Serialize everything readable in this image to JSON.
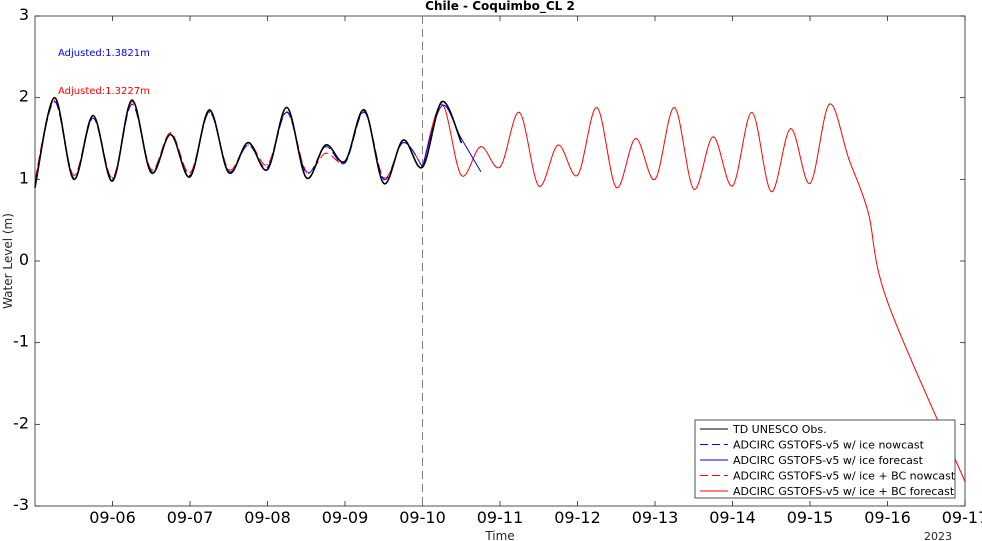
{
  "chart_data": {
    "type": "line",
    "title": "Chile - Coquimbo_CL 2",
    "xlabel": "Time",
    "ylabel": "Water Level (m)",
    "year_label": "2023",
    "xlim": [
      "09-05",
      "09-17"
    ],
    "ylim": [
      -3,
      3
    ],
    "x_ticks": [
      "09-06",
      "09-07",
      "09-08",
      "09-09",
      "09-10",
      "09-11",
      "09-12",
      "09-13",
      "09-14",
      "09-15",
      "09-16",
      "09-17"
    ],
    "y_ticks": [
      3,
      2,
      1,
      0,
      -1,
      -2,
      -3
    ],
    "nowcast_end": "09-10",
    "annotations": [
      {
        "text": "Adjusted:1.3821m",
        "color": "#0000ff"
      },
      {
        "text": "Adjusted:1.3227m",
        "color": "#ff0000"
      }
    ],
    "legend_position": "bottom-right",
    "series": [
      {
        "name": "TD UNESCO Obs.",
        "color": "#000000",
        "style": "solid",
        "x": [
          "09-05 00:00",
          "09-05 06:00",
          "09-05 12:00",
          "09-05 18:00",
          "09-06 00:00",
          "09-06 06:00",
          "09-06 12:00",
          "09-06 18:00",
          "09-07 00:00",
          "09-07 06:00",
          "09-07 12:00",
          "09-07 18:00",
          "09-08 00:00",
          "09-08 06:00",
          "09-08 12:00",
          "09-08 18:00",
          "09-09 00:00",
          "09-09 06:00",
          "09-09 12:00",
          "09-09 18:00",
          "09-10 00:00",
          "09-10 06:00",
          "09-10 12:00"
        ],
        "y": [
          0.9,
          2.0,
          1.0,
          1.78,
          0.98,
          1.97,
          1.08,
          1.55,
          1.03,
          1.85,
          1.08,
          1.45,
          1.12,
          1.88,
          1.02,
          1.42,
          1.22,
          1.85,
          0.95,
          1.48,
          1.15,
          1.95,
          1.45
        ]
      },
      {
        "name": "ADCIRC GSTOFS-v5 w/ ice nowcast",
        "color": "#0000ff",
        "style": "dashed",
        "x": [
          "09-05 00:00",
          "09-05 06:00",
          "09-05 12:00",
          "09-05 18:00",
          "09-06 00:00",
          "09-06 06:00",
          "09-06 12:00",
          "09-06 18:00",
          "09-07 00:00",
          "09-07 06:00",
          "09-07 12:00",
          "09-07 18:00",
          "09-08 00:00",
          "09-08 06:00",
          "09-08 12:00",
          "09-08 18:00",
          "09-09 00:00",
          "09-09 06:00",
          "09-09 12:00",
          "09-09 18:00",
          "09-10 00:00"
        ],
        "y": [
          0.95,
          1.95,
          1.02,
          1.75,
          1.0,
          1.92,
          1.1,
          1.55,
          1.05,
          1.82,
          1.1,
          1.42,
          1.15,
          1.82,
          1.08,
          1.4,
          1.2,
          1.82,
          1.0,
          1.45,
          1.15
        ]
      },
      {
        "name": "ADCIRC GSTOFS-v5 w/ ice forecast",
        "color": "#0000ff",
        "style": "solid",
        "x": [
          "09-10 00:00",
          "09-10 06:00",
          "09-10 12:00",
          "09-10 18:00"
        ],
        "y": [
          1.15,
          1.9,
          1.5,
          1.1
        ]
      },
      {
        "name": "ADCIRC GSTOFS-v5 w/ ice + BC nowcast",
        "color": "#ff0000",
        "style": "dashed",
        "x": [
          "09-05 00:00",
          "09-05 06:00",
          "09-05 12:00",
          "09-05 18:00",
          "09-06 00:00",
          "09-06 06:00",
          "09-06 12:00",
          "09-06 18:00",
          "09-07 00:00",
          "09-07 06:00",
          "09-07 12:00",
          "09-07 18:00",
          "09-08 00:00",
          "09-08 06:00",
          "09-08 12:00",
          "09-08 18:00",
          "09-09 00:00",
          "09-09 06:00",
          "09-09 12:00",
          "09-09 18:00",
          "09-10 00:00"
        ],
        "y": [
          1.0,
          1.97,
          1.05,
          1.78,
          1.02,
          1.95,
          1.12,
          1.57,
          1.08,
          1.83,
          1.12,
          1.45,
          1.18,
          1.83,
          1.1,
          1.32,
          1.22,
          1.83,
          1.02,
          1.45,
          1.15
        ]
      },
      {
        "name": "ADCIRC GSTOFS-v5 w/ ice + BC forecast",
        "color": "#ff0000",
        "style": "solid",
        "x": [
          "09-10 00:00",
          "09-10 06:00",
          "09-10 12:00",
          "09-10 18:00",
          "09-11 00:00",
          "09-11 06:00",
          "09-11 12:00",
          "09-11 18:00",
          "09-12 00:00",
          "09-12 06:00",
          "09-12 12:00",
          "09-12 18:00",
          "09-13 00:00",
          "09-13 06:00",
          "09-13 12:00",
          "09-13 18:00",
          "09-14 00:00",
          "09-14 06:00",
          "09-14 12:00",
          "09-14 18:00",
          "09-15 00:00",
          "09-15 06:00",
          "09-15 12:00",
          "09-15 18:00",
          "09-16 00:00",
          "09-17 00:00"
        ],
        "y": [
          1.15,
          1.92,
          1.05,
          1.4,
          1.15,
          1.82,
          0.92,
          1.42,
          1.05,
          1.88,
          0.9,
          1.5,
          1.0,
          1.88,
          0.88,
          1.52,
          0.92,
          1.82,
          0.85,
          1.62,
          0.95,
          1.92,
          1.25,
          0.6,
          -0.5,
          -2.7
        ]
      }
    ]
  }
}
